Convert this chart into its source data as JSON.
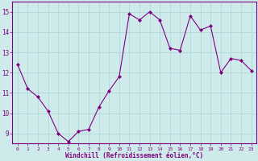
{
  "x": [
    0,
    1,
    2,
    3,
    4,
    5,
    6,
    7,
    8,
    9,
    10,
    11,
    12,
    13,
    14,
    15,
    16,
    17,
    18,
    19,
    20,
    21,
    22,
    23
  ],
  "y": [
    12.4,
    11.2,
    10.8,
    10.1,
    9.0,
    8.6,
    9.1,
    9.2,
    10.3,
    11.1,
    11.8,
    14.9,
    14.6,
    15.0,
    14.6,
    13.2,
    13.1,
    14.8,
    14.1,
    14.3,
    12.0,
    12.7,
    12.6,
    12.1
  ],
  "line_color": "#800080",
  "marker": "D",
  "marker_size": 2,
  "bg_color": "#ceeaea",
  "grid_color": "#b0d8d8",
  "xlabel": "Windchill (Refroidissement éolien,°C)",
  "ylabel_ticks": [
    9,
    10,
    11,
    12,
    13,
    14,
    15
  ],
  "ylim": [
    8.5,
    15.5
  ],
  "xlim": [
    -0.5,
    23.5
  ],
  "tick_color": "#800080",
  "label_color": "#800080",
  "spine_color": "#800080",
  "font_family": "monospace",
  "xtick_fontsize": 4.5,
  "ytick_fontsize": 5.5,
  "xlabel_fontsize": 5.5
}
